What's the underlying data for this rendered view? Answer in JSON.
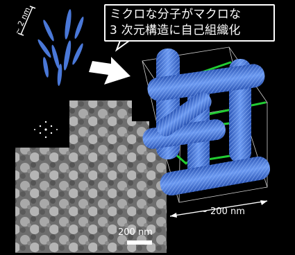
{
  "callout": {
    "line1": "ミクロな分子がマクロな",
    "line2": "3 次元構造に自己組織化"
  },
  "labels": {
    "molecule_size": "~ 2 nm",
    "scale_bar": "200 nm",
    "structure_size": "~ 200 nm"
  },
  "colors": {
    "background": "#000000",
    "molecule_blue": "#4a78d8",
    "rod_blue": "#4f7fe0",
    "green_link": "#22cc33",
    "arrow_white": "#ffffff"
  }
}
